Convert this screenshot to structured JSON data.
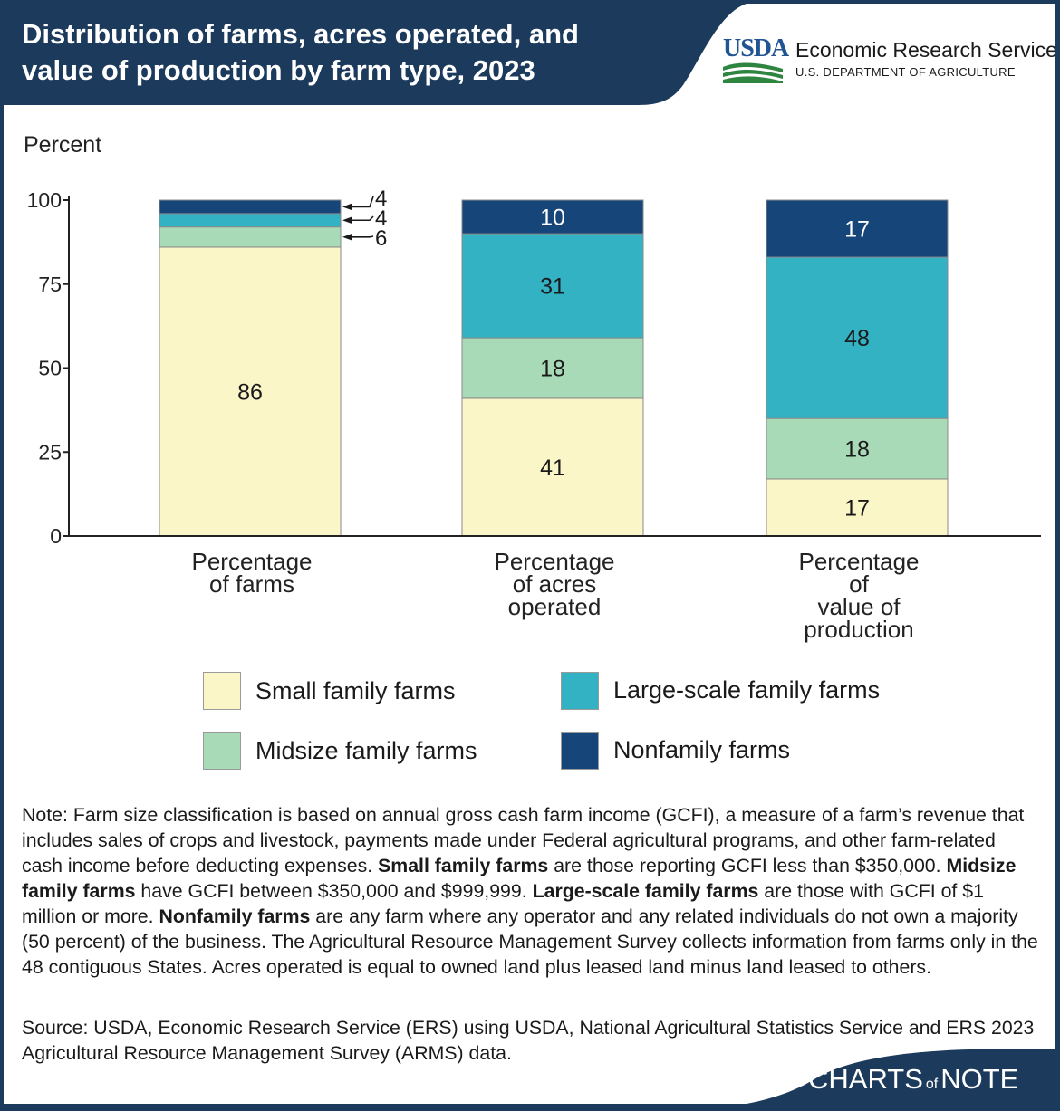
{
  "header": {
    "title_line1": "Distribution of farms, acres operated, and",
    "title_line2": "value of production by farm type, 2023",
    "logo_word": "USDA",
    "agency": "Economic Research Service",
    "department": "U.S. DEPARTMENT OF AGRICULTURE"
  },
  "colors": {
    "header_bg": "#1c3a5c",
    "small": "#fbf6c8",
    "midsize": "#a9dab7",
    "large": "#33b2c4",
    "nonfamily": "#16457a"
  },
  "chart_data": {
    "type": "bar",
    "stacked": true,
    "ylabel": "Percent",
    "ylim": [
      0,
      100
    ],
    "yticks": [
      "0",
      "25",
      "50",
      "75",
      "100"
    ],
    "categories": [
      [
        "Percentage",
        "of farms"
      ],
      [
        "Percentage",
        "of acres",
        "operated"
      ],
      [
        "Percentage",
        "of",
        "value of",
        "production"
      ]
    ],
    "series": [
      {
        "name": "Small family farms",
        "values": [
          86,
          41,
          17
        ],
        "labels": [
          "86",
          "41",
          "17"
        ]
      },
      {
        "name": "Midsize family farms",
        "values": [
          6,
          18,
          18
        ],
        "labels": [
          "6",
          "18",
          "18"
        ]
      },
      {
        "name": "Large-scale family farms",
        "values": [
          4,
          31,
          48
        ],
        "labels": [
          "4",
          "31",
          "48"
        ]
      },
      {
        "name": "Nonfamily farms",
        "values": [
          4,
          10,
          17
        ],
        "labels": [
          "4",
          "10",
          "17"
        ]
      }
    ]
  },
  "legend": {
    "small": "Small family farms",
    "large": "Large-scale family farms",
    "midsize": "Midsize family farms",
    "nonfamily": "Nonfamily farms"
  },
  "note": {
    "t1": "Note: Farm size classification is based on annual gross cash farm income (GCFI), a measure of a farm’s revenue that includes sales of crops and livestock, payments made under Federal agricultural programs, and other farm-related cash income before deducting expenses. ",
    "b1": "Small family farms",
    "t2": " are those reporting GCFI less than $350,000. ",
    "b2": "Midsize family farms",
    "t3": " have GCFI between $350,000 and $999,999. ",
    "b3": "Large-scale family farms",
    "t4": " are those with GCFI of $1 million or more. ",
    "b4": "Nonfamily farms",
    "t5": " are any farm where any operator and any related individuals do not own a majority (50 percent) of the business. The Agricultural Resource Management Survey collects information from farms only in the 48 contiguous States. Acres operated is equal to owned land plus leased land minus land leased to others."
  },
  "source": "Source: USDA, Economic Research Service (ERS) using USDA, National Agricultural Statistics Service and ERS 2023 Agricultural Resource Management Survey (ARMS) data.",
  "brand": {
    "part1": "CHARTS",
    "of": "of",
    "part2": "NOTE"
  }
}
